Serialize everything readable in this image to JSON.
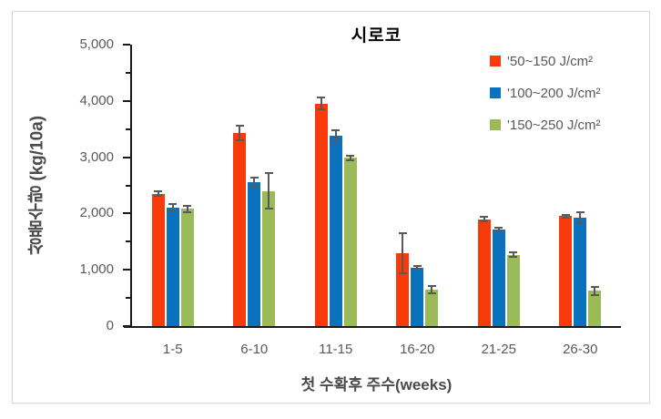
{
  "chart_data": {
    "type": "bar",
    "title": "시로코",
    "categories": [
      "1-5",
      "6-10",
      "11-15",
      "16-20",
      "21-25",
      "26-30"
    ],
    "series": [
      {
        "name": "'50~150 J/cm²",
        "color": "#f93b0c",
        "values": [
          2350,
          3430,
          3950,
          1300,
          1900,
          1950
        ],
        "errors": [
          60,
          150,
          120,
          370,
          60,
          40
        ]
      },
      {
        "name": "'100~200 J/cm²",
        "color": "#0a71bd",
        "values": [
          2100,
          2560,
          3380,
          1040,
          1720,
          1930
        ],
        "errors": [
          80,
          90,
          110,
          40,
          40,
          110
        ]
      },
      {
        "name": "'150~250 J/cm²",
        "color": "#9bbb59",
        "values": [
          2080,
          2400,
          2990,
          650,
          1270,
          630
        ],
        "errors": [
          70,
          330,
          60,
          80,
          50,
          90
        ]
      }
    ],
    "xlabel": "첫 수확후 주수(weeks)",
    "ylabel": "상품수량 (kg/10a)",
    "ylim": [
      0,
      5000
    ],
    "ytick_step": 1000,
    "yminor_step": 500,
    "ytick_labels": [
      "0",
      "1,000",
      "2,000",
      "3,000",
      "4,000",
      "5,000"
    ],
    "legend_position": "top-right",
    "grid": false
  },
  "style": {
    "axis_color": "#1a1a1a",
    "tick_label_color": "#595959",
    "axis_title_color": "#4a4a4a",
    "title_color": "#000000",
    "error_bar_color": "#595959",
    "frame_border_color": "#d9d9d9",
    "background": "#ffffff"
  }
}
